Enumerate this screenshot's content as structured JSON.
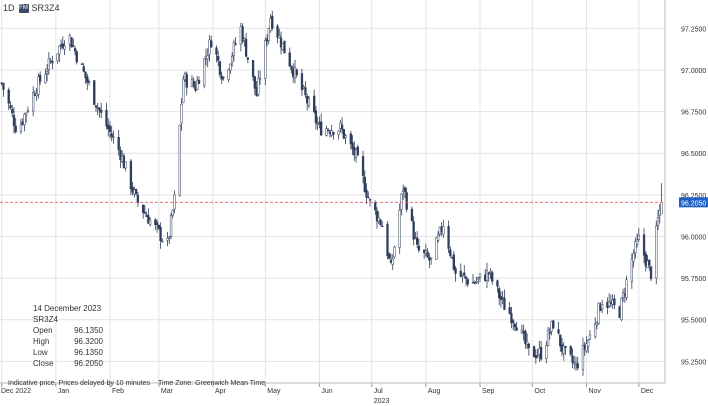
{
  "toolbar": {
    "interval": "1D",
    "symbol_badge": "FM",
    "symbol": "SR3Z4"
  },
  "info_panel": {
    "date": "14 December 2023",
    "symbol": "SR3Z4",
    "open_label": "Open",
    "open_value": "96.1350",
    "high_label": "High",
    "high_value": "96.3200",
    "low_label": "Low",
    "low_value": "96.1350",
    "close_label": "Close",
    "close_value": "96.2050"
  },
  "footer": {
    "delay_note": "Indicative price. Prices delayed by 10 minutes",
    "timezone_note": "Time Zone: Greenwich Mean Time"
  },
  "chart_data": {
    "type": "candlestick",
    "ylim": [
      95.12,
      97.42
    ],
    "y_ticks": [
      "97.2500",
      "97.0000",
      "96.7500",
      "96.5000",
      "96.2500",
      "96.0000",
      "95.7500",
      "95.5000",
      "95.2500"
    ],
    "x_ticks": [
      "Dec 2022",
      "Jan",
      "Feb",
      "Mar",
      "Apr",
      "May",
      "Jun",
      "Jul",
      "Aug",
      "Sep",
      "Oct",
      "Nov",
      "Dec"
    ],
    "x_year_label": "2023",
    "last_price": "96.2050",
    "last_price_value": 96.205,
    "colors": {
      "up": "#ffffff",
      "down": "#2f3d5c",
      "line": "#2f3d5c",
      "current": "#1f5fc4",
      "ref_line": "#e06060",
      "grid": "#e3e3e3"
    },
    "anchors": [
      [
        "2022-12-01",
        96.92
      ],
      [
        "2022-12-10",
        96.63
      ],
      [
        "2022-12-20",
        96.88
      ],
      [
        "2022-12-29",
        97.05
      ],
      [
        "2023-01-08",
        97.22
      ],
      [
        "2023-01-17",
        96.98
      ],
      [
        "2023-01-27",
        96.73
      ],
      [
        "2023-02-07",
        96.5
      ],
      [
        "2023-02-16",
        96.22
      ],
      [
        "2023-02-27",
        96.05
      ],
      [
        "2023-03-06",
        95.95
      ],
      [
        "2023-03-10",
        96.22
      ],
      [
        "2023-03-15",
        96.95
      ],
      [
        "2023-03-22",
        96.9
      ],
      [
        "2023-03-31",
        97.18
      ],
      [
        "2023-04-07",
        96.95
      ],
      [
        "2023-04-17",
        97.25
      ],
      [
        "2023-04-26",
        96.85
      ],
      [
        "2023-05-04",
        97.32
      ],
      [
        "2023-05-12",
        97.12
      ],
      [
        "2023-05-22",
        96.88
      ],
      [
        "2023-06-01",
        96.65
      ],
      [
        "2023-06-13",
        96.65
      ],
      [
        "2023-06-22",
        96.48
      ],
      [
        "2023-06-30",
        96.2
      ],
      [
        "2023-07-07",
        96.07
      ],
      [
        "2023-07-12",
        95.8
      ],
      [
        "2023-07-19",
        96.3
      ],
      [
        "2023-07-27",
        95.92
      ],
      [
        "2023-08-04",
        95.85
      ],
      [
        "2023-08-11",
        96.08
      ],
      [
        "2023-08-18",
        95.78
      ],
      [
        "2023-08-28",
        95.72
      ],
      [
        "2023-09-06",
        95.78
      ],
      [
        "2023-09-14",
        95.6
      ],
      [
        "2023-09-22",
        95.48
      ],
      [
        "2023-09-29",
        95.3
      ],
      [
        "2023-10-06",
        95.3
      ],
      [
        "2023-10-13",
        95.48
      ],
      [
        "2023-10-19",
        95.3
      ],
      [
        "2023-10-26",
        95.22
      ],
      [
        "2023-11-03",
        95.4
      ],
      [
        "2023-11-10",
        95.62
      ],
      [
        "2023-11-20",
        95.55
      ],
      [
        "2023-11-28",
        95.9
      ],
      [
        "2023-12-01",
        95.98
      ],
      [
        "2023-12-07",
        95.8
      ],
      [
        "2023-12-08",
        95.78
      ],
      [
        "2023-12-12",
        96.1
      ],
      [
        "2023-12-14",
        96.205
      ]
    ]
  }
}
